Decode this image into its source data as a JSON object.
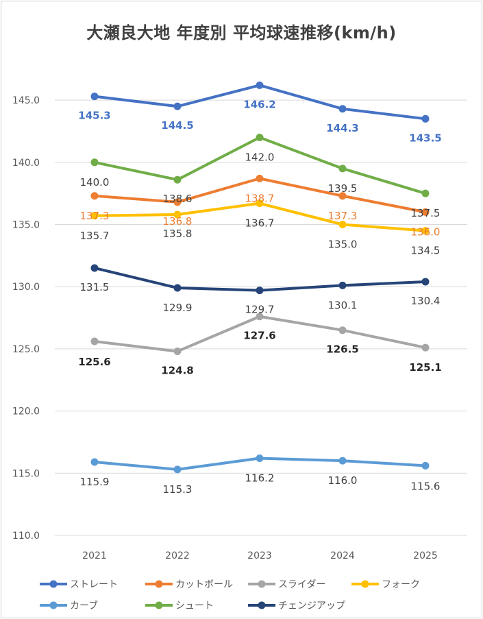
{
  "chart_data": {
    "type": "line",
    "title": "大瀬良大地 年度別 平均球速推移(km/h)",
    "categories": [
      "2021",
      "2022",
      "2023",
      "2024",
      "2025"
    ],
    "ylim": [
      110,
      146.5
    ],
    "yticks": [
      "110.0",
      "115.0",
      "120.0",
      "125.0",
      "130.0",
      "135.0",
      "140.0",
      "145.0"
    ],
    "grid": true,
    "legend_position": "bottom",
    "series": [
      {
        "name": "ストレート",
        "values": [
          145.3,
          144.5,
          146.2,
          144.3,
          143.5
        ],
        "labels": [
          "145.3",
          "144.5",
          "146.2",
          "144.3",
          "143.5"
        ],
        "color": "#4472c4",
        "label_color": "#4472c4",
        "label_bold": true
      },
      {
        "name": "カットボール",
        "values": [
          137.3,
          136.8,
          138.7,
          137.3,
          136.0
        ],
        "labels": [
          "137.3",
          "136.8",
          "138.7",
          "137.3",
          "136.0"
        ],
        "color": "#ed7d31",
        "label_color": "#ed7d31",
        "label_bold": false
      },
      {
        "name": "スライダー",
        "values": [
          125.6,
          124.8,
          127.6,
          126.5,
          125.1
        ],
        "labels": [
          "125.6",
          "124.8",
          "127.6",
          "126.5",
          "125.1"
        ],
        "color": "#a5a5a5",
        "label_color": "#262626",
        "label_bold": true
      },
      {
        "name": "フォーク",
        "values": [
          135.7,
          135.8,
          136.7,
          135.0,
          134.5
        ],
        "labels": [
          "135.7",
          "135.8",
          "136.7",
          "135.0",
          "134.5"
        ],
        "color": "#ffc000",
        "label_color": "#404040",
        "label_bold": false
      },
      {
        "name": "カーブ",
        "values": [
          115.9,
          115.3,
          116.2,
          116.0,
          115.6
        ],
        "labels": [
          "115.9",
          "115.3",
          "116.2",
          "116.0",
          "115.6"
        ],
        "color": "#5b9bd5",
        "label_color": "#404040",
        "label_bold": false
      },
      {
        "name": "シュート",
        "values": [
          140.0,
          138.6,
          142.0,
          139.5,
          137.5
        ],
        "labels": [
          "140.0",
          "138.6",
          "142.0",
          "139.5",
          "137.5"
        ],
        "color": "#70ad47",
        "label_color": "#404040",
        "label_bold": false
      },
      {
        "name": "チェンジアップ",
        "values": [
          131.5,
          129.9,
          129.7,
          130.1,
          130.4
        ],
        "labels": [
          "131.5",
          "129.9",
          "129.7",
          "130.1",
          "130.4"
        ],
        "color": "#264478",
        "label_color": "#404040",
        "label_bold": false
      }
    ]
  }
}
